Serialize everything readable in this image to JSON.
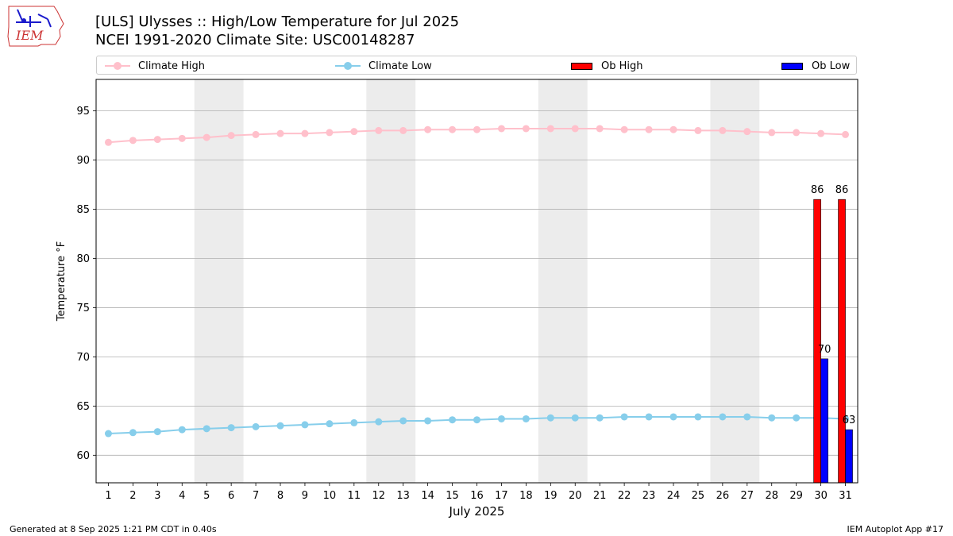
{
  "header": {
    "title_line1": "[ULS] Ulysses :: High/Low Temperature for Jul 2025",
    "title_line2": "NCEI 1991-2020 Climate Site: USC00148287"
  },
  "logo": {
    "text": "IEM"
  },
  "legend": {
    "climate_high": "Climate High",
    "climate_low": "Climate Low",
    "ob_high": "Ob High",
    "ob_low": "Ob Low"
  },
  "footer": {
    "left": "Generated at 8 Sep 2025 1:21 PM CDT in 0.40s",
    "right": "IEM Autoplot App #17"
  },
  "colors": {
    "climate_high": "#ffc0cb",
    "climate_low": "#87ceeb",
    "ob_high": "#ff0000",
    "ob_low": "#0000ff",
    "weekend_band": "#ececec",
    "grid": "#b0b0b0"
  },
  "chart_data": {
    "type": "bar",
    "xlabel": "July 2025",
    "ylabel": "Temperature °F",
    "xlim": [
      0.5,
      31.5
    ],
    "ylim": [
      57.2,
      98.2
    ],
    "yticks": [
      60,
      65,
      70,
      75,
      80,
      85,
      90,
      95
    ],
    "grid": "horizontal",
    "legend_position": "top",
    "weekend_bands": [
      [
        4.5,
        6.5
      ],
      [
        11.5,
        13.5
      ],
      [
        18.5,
        20.5
      ],
      [
        25.5,
        27.5
      ]
    ],
    "x": [
      1,
      2,
      3,
      4,
      5,
      6,
      7,
      8,
      9,
      10,
      11,
      12,
      13,
      14,
      15,
      16,
      17,
      18,
      19,
      20,
      21,
      22,
      23,
      24,
      25,
      26,
      27,
      28,
      29,
      30,
      31
    ],
    "series": [
      {
        "name": "Climate High",
        "kind": "line",
        "values": [
          91.8,
          92.0,
          92.1,
          92.2,
          92.3,
          92.5,
          92.6,
          92.7,
          92.7,
          92.8,
          92.9,
          93.0,
          93.0,
          93.1,
          93.1,
          93.1,
          93.2,
          93.2,
          93.2,
          93.2,
          93.2,
          93.1,
          93.1,
          93.1,
          93.0,
          93.0,
          92.9,
          92.8,
          92.8,
          92.7,
          92.6
        ]
      },
      {
        "name": "Climate Low",
        "kind": "line",
        "values": [
          62.2,
          62.3,
          62.4,
          62.6,
          62.7,
          62.8,
          62.9,
          63.0,
          63.1,
          63.2,
          63.3,
          63.4,
          63.5,
          63.5,
          63.6,
          63.6,
          63.7,
          63.7,
          63.8,
          63.8,
          63.8,
          63.9,
          63.9,
          63.9,
          63.9,
          63.9,
          63.9,
          63.8,
          63.8,
          63.8,
          63.7
        ]
      },
      {
        "name": "Ob High",
        "kind": "bar",
        "values": [
          null,
          null,
          null,
          null,
          null,
          null,
          null,
          null,
          null,
          null,
          null,
          null,
          null,
          null,
          null,
          null,
          null,
          null,
          null,
          null,
          null,
          null,
          null,
          null,
          null,
          null,
          null,
          null,
          null,
          86,
          86
        ],
        "labels": [
          null,
          null,
          null,
          null,
          null,
          null,
          null,
          null,
          null,
          null,
          null,
          null,
          null,
          null,
          null,
          null,
          null,
          null,
          null,
          null,
          null,
          null,
          null,
          null,
          null,
          null,
          null,
          null,
          null,
          "86",
          "86"
        ]
      },
      {
        "name": "Ob Low",
        "kind": "bar",
        "values": [
          null,
          null,
          null,
          null,
          null,
          null,
          null,
          null,
          null,
          null,
          null,
          null,
          null,
          null,
          null,
          null,
          null,
          null,
          null,
          null,
          null,
          null,
          null,
          null,
          null,
          null,
          null,
          null,
          null,
          69.8,
          62.6
        ],
        "labels": [
          null,
          null,
          null,
          null,
          null,
          null,
          null,
          null,
          null,
          null,
          null,
          null,
          null,
          null,
          null,
          null,
          null,
          null,
          null,
          null,
          null,
          null,
          null,
          null,
          null,
          null,
          null,
          null,
          null,
          "70",
          "63"
        ]
      }
    ]
  }
}
